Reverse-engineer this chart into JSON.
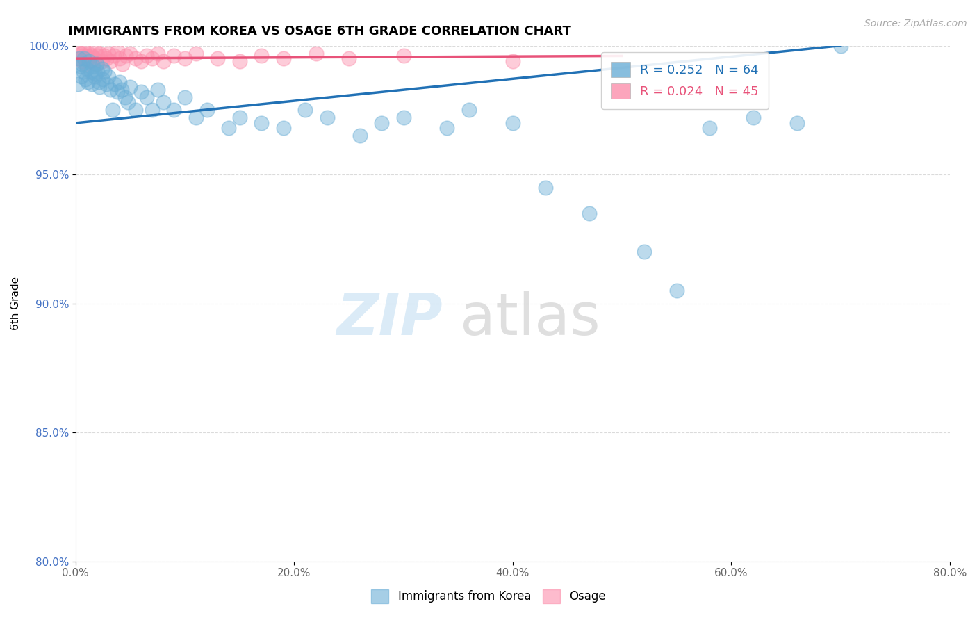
{
  "title": "IMMIGRANTS FROM KOREA VS OSAGE 6TH GRADE CORRELATION CHART",
  "source_text": "Source: ZipAtlas.com",
  "ylabel": "6th Grade",
  "xlim": [
    0.0,
    80.0
  ],
  "ylim": [
    80.0,
    100.0
  ],
  "xticks": [
    0.0,
    20.0,
    40.0,
    60.0,
    80.0
  ],
  "yticks": [
    80.0,
    85.0,
    90.0,
    95.0,
    100.0
  ],
  "blue_R": 0.252,
  "blue_N": 64,
  "pink_R": 0.024,
  "pink_N": 45,
  "blue_color": "#6baed6",
  "pink_color": "#fc8fac",
  "blue_line_color": "#2171b5",
  "pink_line_color": "#e8537a",
  "grid_color": "#cccccc",
  "legend_label_blue": "Immigrants from Korea",
  "legend_label_pink": "Osage",
  "blue_line_x0": 0.0,
  "blue_line_y0": 97.0,
  "blue_line_x1": 70.0,
  "blue_line_y1": 100.0,
  "pink_line_x0": 0.0,
  "pink_line_y0": 99.5,
  "pink_line_x1": 50.0,
  "pink_line_y1": 99.6,
  "blue_x": [
    0.2,
    0.3,
    0.4,
    0.5,
    0.6,
    0.7,
    0.8,
    0.9,
    1.0,
    1.1,
    1.2,
    1.4,
    1.5,
    1.6,
    1.7,
    1.8,
    1.9,
    2.0,
    2.1,
    2.2,
    2.4,
    2.5,
    2.6,
    2.8,
    3.0,
    3.2,
    3.4,
    3.6,
    3.8,
    4.0,
    4.2,
    4.5,
    4.8,
    5.0,
    5.5,
    6.0,
    6.5,
    7.0,
    7.5,
    8.0,
    9.0,
    10.0,
    11.0,
    12.0,
    14.0,
    15.0,
    17.0,
    19.0,
    21.0,
    23.0,
    26.0,
    28.0,
    30.0,
    34.0,
    36.0,
    40.0,
    43.0,
    47.0,
    52.0,
    55.0,
    58.0,
    62.0,
    66.0,
    70.0
  ],
  "blue_y": [
    98.5,
    99.5,
    99.2,
    98.8,
    99.3,
    99.0,
    99.5,
    98.7,
    99.1,
    98.6,
    99.4,
    99.0,
    98.5,
    99.2,
    98.8,
    98.9,
    99.3,
    99.0,
    98.6,
    98.4,
    99.1,
    98.7,
    99.0,
    98.5,
    98.8,
    98.3,
    97.5,
    98.5,
    98.2,
    98.6,
    98.3,
    98.0,
    97.8,
    98.4,
    97.5,
    98.2,
    98.0,
    97.5,
    98.3,
    97.8,
    97.5,
    98.0,
    97.2,
    97.5,
    96.8,
    97.2,
    97.0,
    96.8,
    97.5,
    97.2,
    96.5,
    97.0,
    97.2,
    96.8,
    97.5,
    97.0,
    94.5,
    93.5,
    92.0,
    90.5,
    96.8,
    97.2,
    97.0,
    100.0
  ],
  "pink_x": [
    0.2,
    0.3,
    0.5,
    0.6,
    0.7,
    0.8,
    0.9,
    1.0,
    1.1,
    1.2,
    1.4,
    1.5,
    1.7,
    1.8,
    1.9,
    2.0,
    2.2,
    2.4,
    2.6,
    2.8,
    3.0,
    3.2,
    3.5,
    3.8,
    4.0,
    4.3,
    4.6,
    5.0,
    5.5,
    6.0,
    6.5,
    7.0,
    7.5,
    8.0,
    9.0,
    10.0,
    11.0,
    13.0,
    15.0,
    17.0,
    19.0,
    22.0,
    25.0,
    30.0,
    40.0
  ],
  "pink_y": [
    99.8,
    99.5,
    99.7,
    99.4,
    99.6,
    99.8,
    99.3,
    99.6,
    99.5,
    99.7,
    99.4,
    99.6,
    99.5,
    99.8,
    99.3,
    99.6,
    99.7,
    99.4,
    99.6,
    99.5,
    99.7,
    99.4,
    99.6,
    99.8,
    99.5,
    99.3,
    99.6,
    99.7,
    99.5,
    99.4,
    99.6,
    99.5,
    99.7,
    99.4,
    99.6,
    99.5,
    99.7,
    99.5,
    99.4,
    99.6,
    99.5,
    99.7,
    99.5,
    99.6,
    99.4
  ]
}
